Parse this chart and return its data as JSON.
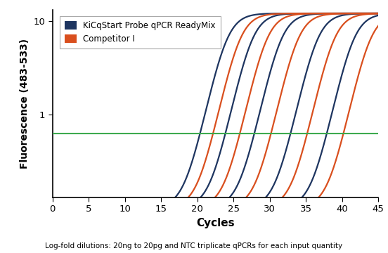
{
  "xlabel": "Cycles",
  "ylabel": "Fluorescence (483-533)",
  "xlim": [
    0,
    45
  ],
  "ylim_log": [
    0.13,
    13
  ],
  "xticks": [
    0,
    5,
    10,
    15,
    20,
    25,
    30,
    35,
    40,
    45
  ],
  "threshold_y": 0.63,
  "threshold_color": "#3daa4e",
  "blue_color": "#1e3560",
  "red_color": "#d94f1e",
  "legend_label_blue": "KiCqStart Probe qPCR ReadyMix",
  "legend_label_red": "Competitor I",
  "caption": "Log-fold dilutions: 20ng to 20pg and NTC triplicate qPCRs for each input quantity",
  "blue_ct_values": [
    24.0,
    27.5,
    31.5,
    36.5,
    41.5
  ],
  "red_ct_values": [
    25.8,
    29.5,
    33.8,
    38.8,
    43.8
  ],
  "curve_steepness": 0.85,
  "curve_max": 12.0,
  "curve_baseline": 0.1
}
